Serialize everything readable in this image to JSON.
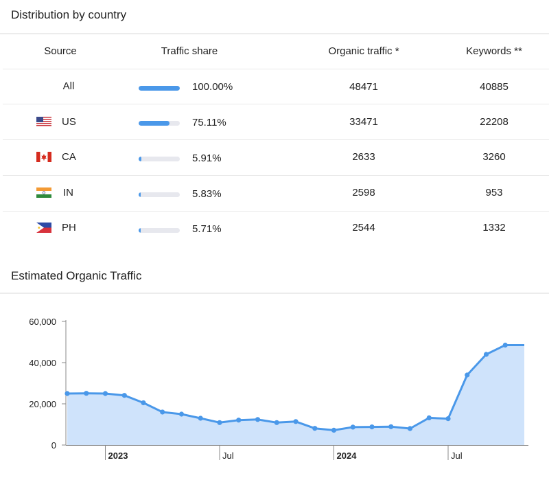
{
  "distribution": {
    "title": "Distribution by country",
    "headers": {
      "source": "Source",
      "share": "Traffic share",
      "organic": "Organic traffic *",
      "keywords": "Keywords **"
    },
    "rows": [
      {
        "source": "All",
        "flag": "",
        "share": "100.00%",
        "share_value": 1.0,
        "organic": "48471",
        "keywords": "40885"
      },
      {
        "source": "US",
        "flag": "us-flag-icon",
        "share": "75.11%",
        "share_value": 0.7511,
        "organic": "33471",
        "keywords": "22208"
      },
      {
        "source": "CA",
        "flag": "ca-flag-icon",
        "share": "5.91%",
        "share_value": 0.0591,
        "organic": "2633",
        "keywords": "3260"
      },
      {
        "source": "IN",
        "flag": "in-flag-icon",
        "share": "5.83%",
        "share_value": 0.0583,
        "organic": "2598",
        "keywords": "953"
      },
      {
        "source": "PH",
        "flag": "ph-flag-icon",
        "share": "5.71%",
        "share_value": 0.0571,
        "organic": "2544",
        "keywords": "1332"
      }
    ]
  },
  "traffic": {
    "title": "Estimated Organic Traffic"
  },
  "chart_data": {
    "type": "area",
    "title": "Estimated Organic Traffic",
    "x": [
      "2022-11",
      "2022-12",
      "2023-01",
      "2023-02",
      "2023-03",
      "2023-04",
      "2023-05",
      "2023-06",
      "2023-07",
      "2023-08",
      "2023-09",
      "2023-10",
      "2023-11",
      "2023-12",
      "2024-01",
      "2024-02",
      "2024-03",
      "2024-04",
      "2024-05",
      "2024-06",
      "2024-07",
      "2024-08",
      "2024-09",
      "2024-10",
      "2024-11"
    ],
    "series": [
      {
        "values": [
          25000,
          25100,
          25000,
          24100,
          20500,
          16000,
          15000,
          13000,
          10900,
          12100,
          12400,
          10900,
          11400,
          8100,
          7200,
          8700,
          8800,
          8900,
          8000,
          13200,
          12800,
          34000,
          44000,
          48500,
          48500
        ]
      }
    ],
    "y_ticks": [
      "60,000",
      "40,000",
      "20,000",
      "0"
    ],
    "ylim": [
      0,
      60000
    ],
    "x_ticks": [
      {
        "label": "2023",
        "x": "2023-01",
        "bold": true
      },
      {
        "label": "Jul",
        "x": "2023-07",
        "bold": false
      },
      {
        "label": "2024",
        "x": "2024-01",
        "bold": true
      },
      {
        "label": "Jul",
        "x": "2024-07",
        "bold": false
      }
    ],
    "colors": {
      "line": "#4a98e9",
      "fill": "#cfe3fb"
    },
    "grid": false
  }
}
